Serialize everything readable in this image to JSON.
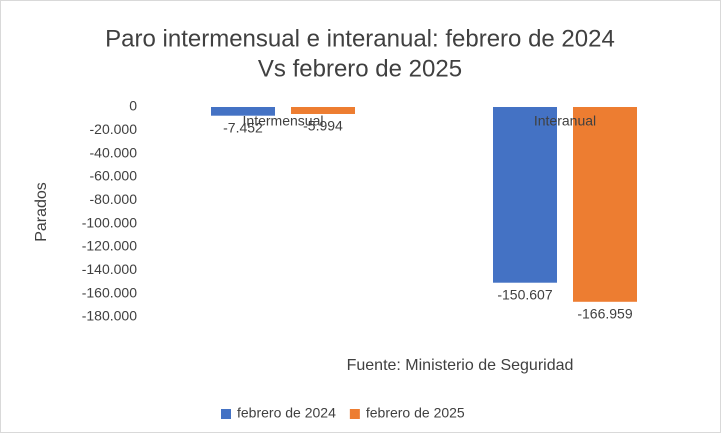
{
  "chart_data": {
    "type": "bar",
    "title": [
      "Paro intermensual e interanual: febrero de 2024",
      "Vs febrero de 2025"
    ],
    "y_label": "Parados",
    "annotation": "Fuente: Ministerio de Seguridad",
    "categories": [
      "Intermensual",
      "Interanual"
    ],
    "series": [
      {
        "name": "febrero de 2024",
        "color": "#4472c4",
        "values": [
          -7452,
          -150607
        ],
        "value_labels": [
          "-7.452",
          "-150.607"
        ]
      },
      {
        "name": "febrero de 2025",
        "color": "#ed7d31",
        "values": [
          -5994,
          -166959
        ],
        "value_labels": [
          "-5.994",
          "-166.959"
        ]
      }
    ],
    "ylim": [
      -180000,
      0
    ],
    "yticks": [
      0,
      {
        "value": -20000,
        "label": "-20.000"
      },
      {
        "value": -40000,
        "label": "-40.000"
      },
      {
        "value": -60000,
        "label": "-60.000"
      },
      {
        "value": -80000,
        "label": "-80.000"
      },
      {
        "value": -100000,
        "label": "-100.000"
      },
      {
        "value": -120000,
        "label": "-120.000"
      },
      {
        "value": -140000,
        "label": "-140.000"
      },
      {
        "value": -160000,
        "label": "-160.000"
      },
      {
        "value": -180000,
        "label": "-180.000"
      }
    ],
    "grid": false,
    "legend": "bottom"
  }
}
